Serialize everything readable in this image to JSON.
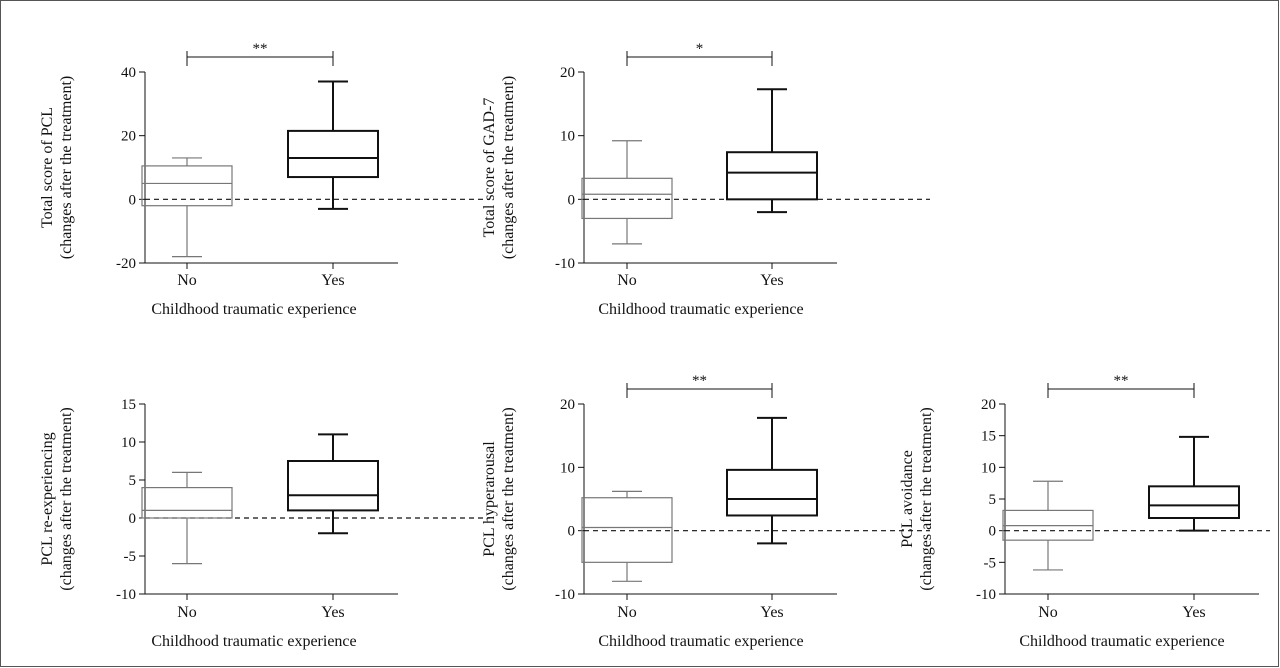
{
  "chart_data": [
    {
      "type": "box",
      "ylabel_line1": "Total score of PCL",
      "ylabel_line2": "(changes after the treatment)",
      "xlabel": "Childhood traumatic experience",
      "categories": [
        "No",
        "Yes"
      ],
      "ylim": [
        -20,
        40
      ],
      "yticks": [
        -20,
        0,
        20,
        40
      ],
      "reference_line": 0,
      "boxes": [
        {
          "category": "No",
          "min": -18,
          "q1": -2,
          "median": 5,
          "q3": 10.5,
          "max": 13,
          "color": "#777777"
        },
        {
          "category": "Yes",
          "min": -3,
          "q1": 7,
          "median": 13,
          "q3": 21.5,
          "max": 37,
          "color": "#111111"
        }
      ],
      "significance": "**"
    },
    {
      "type": "box",
      "ylabel_line1": "Total score of GAD-7",
      "ylabel_line2": "(changes after the treatment)",
      "xlabel": "Childhood traumatic experience",
      "categories": [
        "No",
        "Yes"
      ],
      "ylim": [
        -10,
        20
      ],
      "yticks": [
        -10,
        0,
        10,
        20
      ],
      "reference_line": 0,
      "boxes": [
        {
          "category": "No",
          "min": -7,
          "q1": -3,
          "median": 0.8,
          "q3": 3.3,
          "max": 9.2,
          "color": "#777777"
        },
        {
          "category": "Yes",
          "min": -2,
          "q1": 0,
          "median": 4.2,
          "q3": 7.4,
          "max": 17.3,
          "color": "#111111"
        }
      ],
      "significance": "*"
    },
    {
      "type": "box",
      "ylabel_line1": "PCL re-experiencing",
      "ylabel_line2": "(changes after the treatment)",
      "xlabel": "Childhood traumatic experience",
      "categories": [
        "No",
        "Yes"
      ],
      "ylim": [
        -10,
        15
      ],
      "yticks": [
        -10,
        -5,
        0,
        5,
        10,
        15
      ],
      "reference_line": 0,
      "boxes": [
        {
          "category": "No",
          "min": -6,
          "q1": 0,
          "median": 1,
          "q3": 4,
          "max": 6,
          "color": "#777777"
        },
        {
          "category": "Yes",
          "min": -2,
          "q1": 1,
          "median": 3,
          "q3": 7.5,
          "max": 11,
          "color": "#111111"
        }
      ],
      "significance": ""
    },
    {
      "type": "box",
      "ylabel_line1": "PCL hyperarousal",
      "ylabel_line2": "(changes after the treatment)",
      "xlabel": "Childhood traumatic experience",
      "categories": [
        "No",
        "Yes"
      ],
      "ylim": [
        -10,
        20
      ],
      "yticks": [
        -10,
        0,
        10,
        20
      ],
      "reference_line": 0,
      "boxes": [
        {
          "category": "No",
          "min": -8,
          "q1": -5,
          "median": 0.5,
          "q3": 5.2,
          "max": 6.2,
          "color": "#777777"
        },
        {
          "category": "Yes",
          "min": -2,
          "q1": 2.4,
          "median": 5,
          "q3": 9.6,
          "max": 17.8,
          "color": "#111111"
        }
      ],
      "significance": "**"
    },
    {
      "type": "box",
      "ylabel_line1": "PCL avoidance",
      "ylabel_line2": "(changes after the treatment)",
      "xlabel": "Childhood traumatic experience",
      "categories": [
        "No",
        "Yes"
      ],
      "ylim": [
        -10,
        20
      ],
      "yticks": [
        -10,
        -5,
        0,
        5,
        10,
        15,
        20
      ],
      "reference_line": 0,
      "boxes": [
        {
          "category": "No",
          "min": -6.2,
          "q1": -1.5,
          "median": 0.8,
          "q3": 3.2,
          "max": 7.8,
          "color": "#777777"
        },
        {
          "category": "Yes",
          "min": 0,
          "q1": 2,
          "median": 4,
          "q3": 7,
          "max": 14.8,
          "color": "#111111"
        }
      ],
      "significance": "**"
    }
  ]
}
